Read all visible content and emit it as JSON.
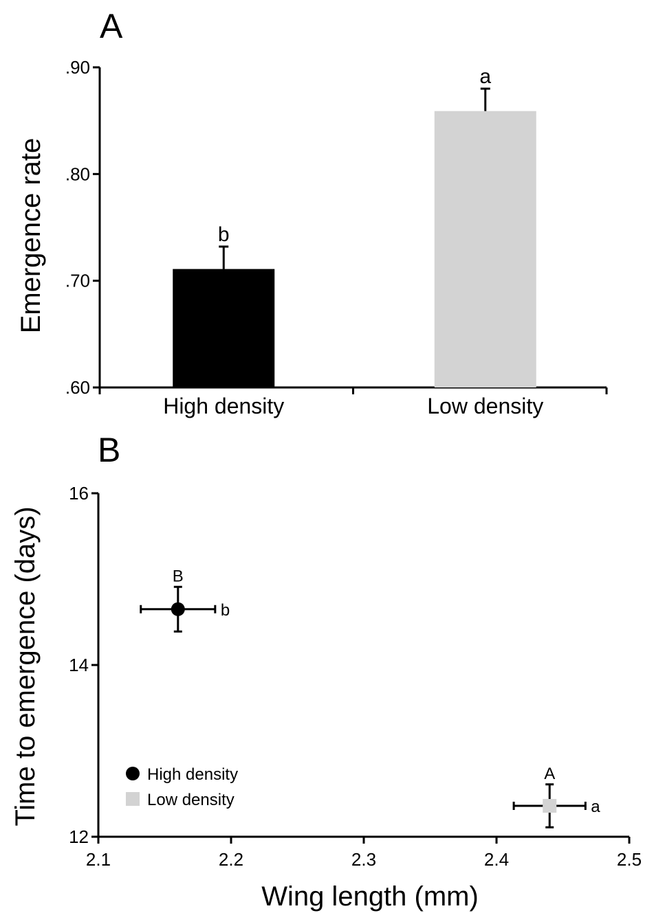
{
  "chart_data": [
    {
      "panel_label": "A",
      "type": "bar",
      "ylabel": "Emergence rate",
      "ylim": [
        0.6,
        0.9
      ],
      "yticks": [
        0.6,
        0.7,
        0.8,
        0.9
      ],
      "ytick_labels": [
        ".60",
        ".70",
        ".80",
        ".90"
      ],
      "grid": false,
      "categories": [
        "High density",
        "Low density"
      ],
      "values": [
        0.711,
        0.859
      ],
      "error_upper": [
        0.021,
        0.021
      ],
      "bar_colors": [
        "#000000",
        "#d3d3d3"
      ],
      "significance_letters": [
        "b",
        "a"
      ]
    },
    {
      "panel_label": "B",
      "type": "scatter",
      "xlabel": "Wing length (mm)",
      "ylabel": "Time to emergence (days)",
      "xlim": [
        2.1,
        2.5
      ],
      "ylim": [
        12,
        16
      ],
      "xticks": [
        2.1,
        2.2,
        2.3,
        2.4,
        2.5
      ],
      "xtick_labels": [
        "2.1",
        "2.2",
        "2.3",
        "2.4",
        "2.5"
      ],
      "yticks": [
        12,
        14,
        16
      ],
      "ytick_labels": [
        "12",
        "14",
        "16"
      ],
      "grid": false,
      "legend_position": "bottom-left",
      "series": [
        {
          "name": "High density",
          "marker": "circle",
          "color": "#000000",
          "x": 2.16,
          "y": 14.65,
          "x_err": 0.028,
          "y_err": 0.26,
          "letter_y": "B",
          "letter_x": "b"
        },
        {
          "name": "Low density",
          "marker": "square",
          "color": "#d3d3d3",
          "x": 2.44,
          "y": 12.36,
          "x_err": 0.027,
          "y_err": 0.25,
          "letter_y": "A",
          "letter_x": "a"
        }
      ]
    }
  ]
}
